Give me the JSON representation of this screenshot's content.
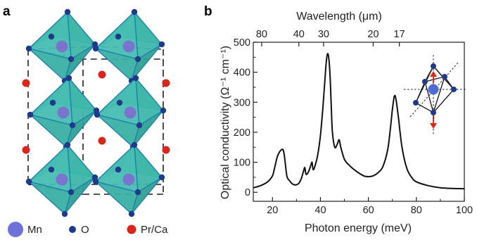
{
  "figure": {
    "panel_a": {
      "letter": "a",
      "legend": [
        {
          "label": "Mn",
          "color": "#6e72d8"
        },
        {
          "label": "O",
          "color": "#1f3a8a"
        },
        {
          "label": "Pr/Ca",
          "color": "#d9251c"
        }
      ],
      "colors": {
        "octahedron": "#3fb7aa",
        "edge": "#1b7fae",
        "cell": "#231f20"
      }
    },
    "panel_b": {
      "letter": "b",
      "colors": {
        "curve": "#111111",
        "inset_red": "#e2231a",
        "inset_blue": "#4f6bd6",
        "inset_node": "#1f3a8a"
      }
    }
  },
  "chart_data": {
    "type": "line",
    "title": "",
    "xlabel": "Photon energy (meV)",
    "ylabel": "Optical conductivity (Ω⁻¹ cm⁻¹)",
    "xlim": [
      12,
      100
    ],
    "ylim": [
      -30,
      500
    ],
    "x_ticks": [
      20,
      40,
      60,
      80,
      100
    ],
    "y_ticks": [
      0,
      100,
      200,
      300,
      400,
      500
    ],
    "top_axis": {
      "label": "Wavelength (μm)",
      "ticks": [
        {
          "label": "80",
          "energy": 15.5
        },
        {
          "label": "40",
          "energy": 31.0
        },
        {
          "label": "30",
          "energy": 41.3
        },
        {
          "label": "20",
          "energy": 62.0
        },
        {
          "label": "17",
          "energy": 72.9
        }
      ]
    },
    "series": [
      {
        "x": [
          12,
          15,
          18,
          20,
          21,
          22,
          23,
          24,
          24.5,
          25,
          26,
          27,
          28,
          29,
          30,
          31,
          32,
          33,
          33.5,
          34,
          35,
          36,
          36.5,
          37,
          38,
          39,
          40,
          41,
          42,
          42.5,
          43,
          43.5,
          44,
          44.5,
          45,
          46,
          47,
          47.8,
          48.5,
          50,
          52,
          55,
          58,
          60,
          62,
          64,
          66,
          68,
          69,
          70,
          70.8,
          71.5,
          72.5,
          74,
          76,
          78,
          80,
          85,
          90,
          95,
          100
        ],
        "y": [
          15,
          22,
          35,
          55,
          85,
          118,
          135,
          143,
          140,
          120,
          55,
          40,
          30,
          25,
          25,
          30,
          45,
          72,
          82,
          60,
          68,
          90,
          100,
          75,
          95,
          130,
          190,
          280,
          390,
          440,
          462,
          445,
          390,
          290,
          200,
          150,
          160,
          175,
          150,
          110,
          90,
          70,
          55,
          52,
          55,
          65,
          85,
          140,
          200,
          275,
          320,
          310,
          250,
          150,
          80,
          50,
          35,
          22,
          15,
          13,
          12
        ]
      }
    ]
  }
}
